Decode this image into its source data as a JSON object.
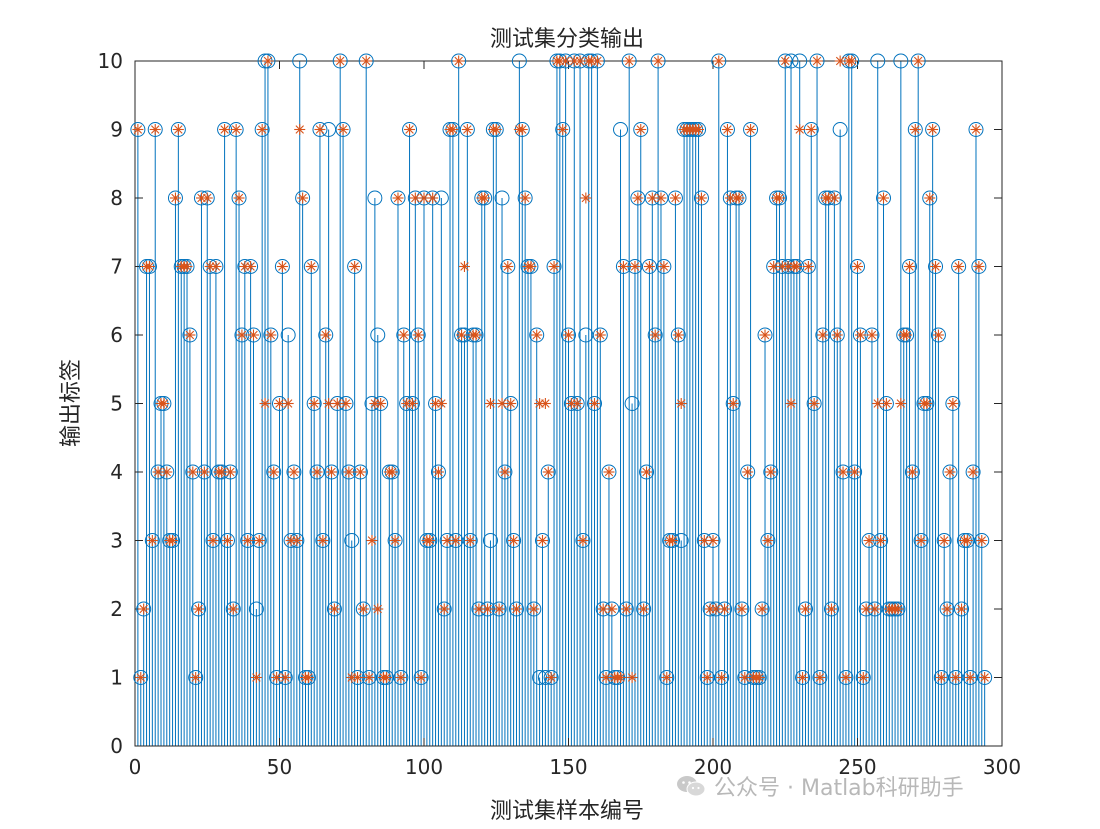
{
  "chart_data": {
    "type": "stem",
    "title": "测试集分类输出",
    "xlabel": "测试集样本编号",
    "ylabel": "输出标签",
    "xlim": [
      0,
      300
    ],
    "ylim": [
      0,
      10
    ],
    "xticks": [
      "0",
      "50",
      "100",
      "150",
      "200",
      "250",
      "300"
    ],
    "yticks": [
      "0",
      "1",
      "2",
      "3",
      "4",
      "5",
      "6",
      "7",
      "8",
      "9",
      "10"
    ],
    "grid": false,
    "legend": "none",
    "series": [
      {
        "marker": "circle",
        "color": "#0072BD",
        "values": [
          9,
          1,
          2,
          7,
          7,
          3,
          9,
          4,
          5,
          5,
          4,
          3,
          3,
          8,
          9,
          7,
          7,
          7,
          6,
          4,
          1,
          2,
          8,
          4,
          8,
          7,
          3,
          7,
          4,
          4,
          9,
          3,
          4,
          2,
          9,
          8,
          6,
          7,
          3,
          7,
          6,
          2,
          3,
          9,
          10,
          10,
          6,
          4,
          1,
          5,
          7,
          1,
          6,
          3,
          4,
          3,
          10,
          8,
          1,
          1,
          7,
          5,
          4,
          9,
          3,
          6,
          9,
          4,
          2,
          5,
          10,
          9,
          5,
          4,
          3,
          7,
          1,
          4,
          2,
          10,
          1,
          5,
          8,
          6,
          5,
          1,
          1,
          4,
          4,
          3,
          8,
          1,
          6,
          5,
          9,
          5,
          8,
          6,
          1,
          8,
          3,
          3,
          8,
          5,
          4,
          8,
          2,
          3,
          9,
          9,
          3,
          10,
          6,
          6,
          9,
          3,
          6,
          6,
          2,
          8,
          8,
          2,
          3,
          9,
          9,
          2,
          8,
          4,
          7,
          5,
          3,
          2,
          10,
          9,
          8,
          7,
          7,
          2,
          6,
          1,
          3,
          1,
          4,
          1,
          7,
          10,
          10,
          9,
          10,
          6,
          5,
          10,
          5,
          10,
          3,
          6,
          10,
          10,
          5,
          10,
          6,
          2,
          1,
          4,
          2,
          1,
          1,
          9,
          7,
          2,
          10,
          5,
          7,
          8,
          9,
          2,
          4,
          7,
          8,
          6,
          10,
          8,
          7,
          1,
          3,
          3,
          8,
          6,
          3,
          9,
          9,
          9,
          9,
          9,
          9,
          8,
          3,
          1,
          2,
          3,
          2,
          10,
          1,
          2,
          9,
          8,
          5,
          8,
          8,
          2,
          1,
          4,
          9,
          1,
          1,
          1,
          2,
          6,
          3,
          4,
          7,
          8,
          8,
          7,
          10,
          7,
          10,
          7,
          7,
          10,
          1,
          2,
          7,
          9,
          5,
          10,
          1,
          6,
          8,
          8,
          2,
          8,
          6,
          9,
          4,
          1,
          10,
          10,
          4,
          7,
          6,
          1,
          2,
          3,
          6,
          2,
          10,
          3,
          8,
          5,
          2,
          2,
          2,
          2,
          10,
          6,
          6,
          7,
          4,
          9,
          10,
          3,
          5,
          5,
          8,
          9,
          7,
          6,
          1,
          3,
          2,
          4,
          5,
          1,
          7,
          2,
          3,
          3,
          1,
          4,
          9,
          7,
          3,
          1
        ]
      },
      {
        "marker": "asterisk",
        "color": "#D95319",
        "values": [
          9,
          1,
          2,
          7,
          7,
          3,
          9,
          4,
          5,
          5,
          4,
          3,
          3,
          8,
          9,
          7,
          7,
          7,
          6,
          4,
          1,
          2,
          8,
          4,
          8,
          7,
          3,
          7,
          4,
          4,
          9,
          3,
          4,
          2,
          9,
          8,
          6,
          7,
          3,
          7,
          6,
          1,
          3,
          9,
          5,
          10,
          6,
          4,
          1,
          5,
          7,
          1,
          5,
          3,
          4,
          3,
          9,
          8,
          1,
          1,
          7,
          5,
          4,
          9,
          3,
          6,
          5,
          4,
          2,
          5,
          10,
          9,
          5,
          4,
          1,
          7,
          1,
          4,
          2,
          10,
          1,
          3,
          5,
          2,
          5,
          1,
          1,
          4,
          4,
          3,
          8,
          1,
          6,
          5,
          9,
          5,
          8,
          6,
          1,
          8,
          3,
          3,
          8,
          5,
          4,
          5,
          2,
          3,
          9,
          9,
          3,
          10,
          6,
          7,
          9,
          3,
          6,
          6,
          2,
          8,
          8,
          2,
          5,
          9,
          9,
          2,
          5,
          4,
          7,
          5,
          3,
          2,
          9,
          9,
          8,
          7,
          7,
          2,
          6,
          5,
          3,
          5,
          4,
          1,
          7,
          10,
          10,
          9,
          10,
          6,
          5,
          10,
          5,
          10,
          3,
          8,
          10,
          10,
          5,
          10,
          6,
          2,
          1,
          4,
          2,
          1,
          1,
          1,
          7,
          2,
          10,
          1,
          7,
          8,
          9,
          2,
          4,
          7,
          8,
          6,
          10,
          8,
          7,
          1,
          3,
          3,
          8,
          6,
          5,
          9,
          9,
          9,
          9,
          9,
          9,
          8,
          3,
          1,
          2,
          3,
          2,
          10,
          1,
          2,
          9,
          8,
          5,
          8,
          8,
          2,
          1,
          4,
          9,
          1,
          1,
          1,
          2,
          6,
          3,
          4,
          7,
          8,
          8,
          7,
          10,
          7,
          5,
          7,
          7,
          9,
          1,
          2,
          7,
          9,
          5,
          10,
          1,
          6,
          8,
          8,
          2,
          8,
          6,
          10,
          4,
          1,
          10,
          10,
          4,
          7,
          6,
          1,
          2,
          3,
          6,
          2,
          5,
          3,
          8,
          5,
          2,
          2,
          2,
          2,
          5,
          6,
          6,
          7,
          4,
          9,
          10,
          3,
          5,
          5,
          8,
          9,
          7,
          6,
          1,
          3,
          2,
          4,
          5,
          1,
          7,
          2,
          3,
          3,
          1,
          4,
          9,
          7,
          3,
          1
        ]
      }
    ]
  },
  "watermark": {
    "icon": "wechat-icon",
    "text": "公众号 · Matlab科研助手"
  }
}
